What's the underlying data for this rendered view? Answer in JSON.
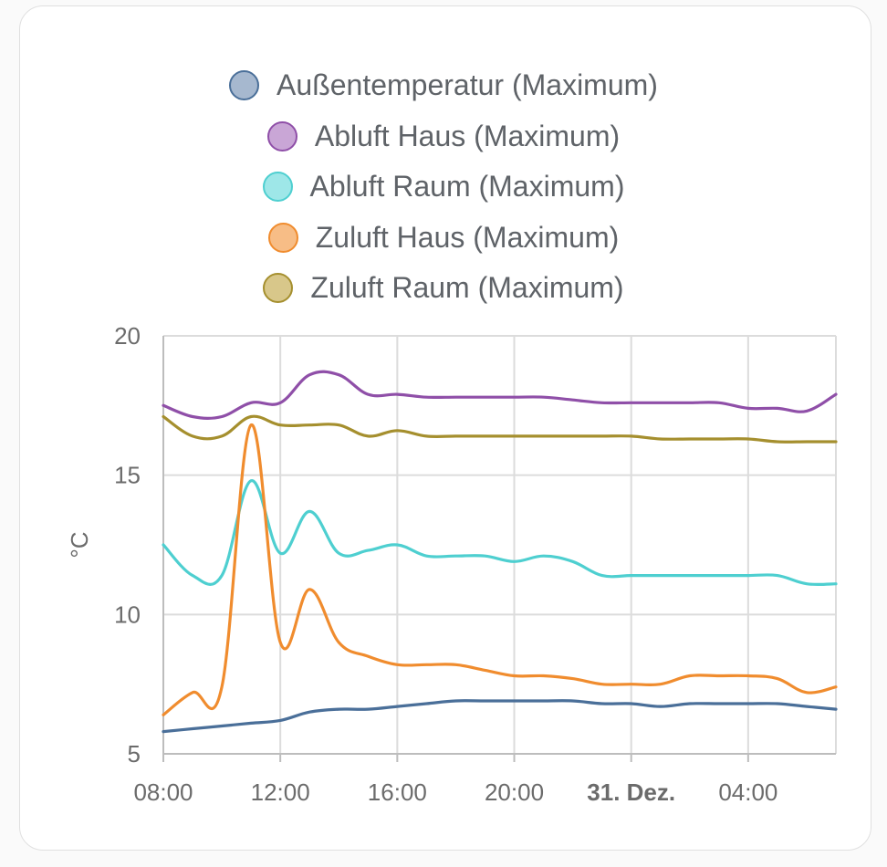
{
  "chart_data": {
    "type": "line",
    "ylabel": "°C",
    "ylim": [
      5,
      20
    ],
    "yticks": [
      5,
      10,
      15,
      20
    ],
    "xlim": [
      8,
      31
    ],
    "xticks": [
      {
        "x": 8,
        "label": "08:00",
        "bold": false
      },
      {
        "x": 12,
        "label": "12:00",
        "bold": false
      },
      {
        "x": 16,
        "label": "16:00",
        "bold": false
      },
      {
        "x": 20,
        "label": "20:00",
        "bold": false
      },
      {
        "x": 24,
        "label": "31. Dez.",
        "bold": true
      },
      {
        "x": 28,
        "label": "04:00",
        "bold": false
      }
    ],
    "x_unit_note": "hours",
    "grid": true,
    "legend": "top-center",
    "series": [
      {
        "name": "Außentemperatur (Maximum)",
        "color": "#4a6f99",
        "fill": "#a6b8cf",
        "points": [
          [
            8,
            5.8
          ],
          [
            9,
            5.9
          ],
          [
            10,
            6.0
          ],
          [
            11,
            6.1
          ],
          [
            12,
            6.2
          ],
          [
            13,
            6.5
          ],
          [
            14,
            6.6
          ],
          [
            15,
            6.6
          ],
          [
            16,
            6.7
          ],
          [
            17,
            6.8
          ],
          [
            18,
            6.9
          ],
          [
            19,
            6.9
          ],
          [
            20,
            6.9
          ],
          [
            21,
            6.9
          ],
          [
            22,
            6.9
          ],
          [
            23,
            6.8
          ],
          [
            24,
            6.8
          ],
          [
            25,
            6.7
          ],
          [
            26,
            6.8
          ],
          [
            27,
            6.8
          ],
          [
            28,
            6.8
          ],
          [
            29,
            6.8
          ],
          [
            30,
            6.7
          ],
          [
            31,
            6.6
          ]
        ]
      },
      {
        "name": "Abluft Haus (Maximum)",
        "color": "#8f4fa8",
        "fill": "#c9a6d6",
        "points": [
          [
            8,
            17.5
          ],
          [
            9,
            17.1
          ],
          [
            10,
            17.1
          ],
          [
            11,
            17.6
          ],
          [
            12,
            17.6
          ],
          [
            13,
            18.6
          ],
          [
            14,
            18.6
          ],
          [
            15,
            17.9
          ],
          [
            16,
            17.9
          ],
          [
            17,
            17.8
          ],
          [
            18,
            17.8
          ],
          [
            19,
            17.8
          ],
          [
            20,
            17.8
          ],
          [
            21,
            17.8
          ],
          [
            22,
            17.7
          ],
          [
            23,
            17.6
          ],
          [
            24,
            17.6
          ],
          [
            25,
            17.6
          ],
          [
            26,
            17.6
          ],
          [
            27,
            17.6
          ],
          [
            28,
            17.4
          ],
          [
            29,
            17.4
          ],
          [
            30,
            17.3
          ],
          [
            31,
            17.9
          ]
        ]
      },
      {
        "name": "Abluft Raum (Maximum)",
        "color": "#4ecfd0",
        "fill": "#9ee7e8",
        "points": [
          [
            8,
            12.5
          ],
          [
            9,
            11.4
          ],
          [
            10,
            11.4
          ],
          [
            11,
            14.8
          ],
          [
            12,
            12.2
          ],
          [
            13,
            13.7
          ],
          [
            14,
            12.2
          ],
          [
            15,
            12.3
          ],
          [
            16,
            12.5
          ],
          [
            17,
            12.1
          ],
          [
            18,
            12.1
          ],
          [
            19,
            12.1
          ],
          [
            20,
            11.9
          ],
          [
            21,
            12.1
          ],
          [
            22,
            11.9
          ],
          [
            23,
            11.4
          ],
          [
            24,
            11.4
          ],
          [
            25,
            11.4
          ],
          [
            26,
            11.4
          ],
          [
            27,
            11.4
          ],
          [
            28,
            11.4
          ],
          [
            29,
            11.4
          ],
          [
            30,
            11.1
          ],
          [
            31,
            11.1
          ]
        ]
      },
      {
        "name": "Zuluft Haus (Maximum)",
        "color": "#f08c2e",
        "fill": "#f7bd86",
        "points": [
          [
            8,
            6.4
          ],
          [
            9,
            7.2
          ],
          [
            10,
            7.4
          ],
          [
            11,
            16.8
          ],
          [
            12,
            9.0
          ],
          [
            13,
            10.9
          ],
          [
            14,
            9.0
          ],
          [
            15,
            8.5
          ],
          [
            16,
            8.2
          ],
          [
            17,
            8.2
          ],
          [
            18,
            8.2
          ],
          [
            19,
            8.0
          ],
          [
            20,
            7.8
          ],
          [
            21,
            7.8
          ],
          [
            22,
            7.7
          ],
          [
            23,
            7.5
          ],
          [
            24,
            7.5
          ],
          [
            25,
            7.5
          ],
          [
            26,
            7.8
          ],
          [
            27,
            7.8
          ],
          [
            28,
            7.8
          ],
          [
            29,
            7.7
          ],
          [
            30,
            7.2
          ],
          [
            31,
            7.4
          ]
        ]
      },
      {
        "name": "Zuluft Raum (Maximum)",
        "color": "#a58f2e",
        "fill": "#d8c78a",
        "points": [
          [
            8,
            17.1
          ],
          [
            9,
            16.4
          ],
          [
            10,
            16.4
          ],
          [
            11,
            17.1
          ],
          [
            12,
            16.8
          ],
          [
            13,
            16.8
          ],
          [
            14,
            16.8
          ],
          [
            15,
            16.4
          ],
          [
            16,
            16.6
          ],
          [
            17,
            16.4
          ],
          [
            18,
            16.4
          ],
          [
            19,
            16.4
          ],
          [
            20,
            16.4
          ],
          [
            21,
            16.4
          ],
          [
            22,
            16.4
          ],
          [
            23,
            16.4
          ],
          [
            24,
            16.4
          ],
          [
            25,
            16.3
          ],
          [
            26,
            16.3
          ],
          [
            27,
            16.3
          ],
          [
            28,
            16.3
          ],
          [
            29,
            16.2
          ],
          [
            30,
            16.2
          ],
          [
            31,
            16.2
          ]
        ]
      }
    ]
  }
}
